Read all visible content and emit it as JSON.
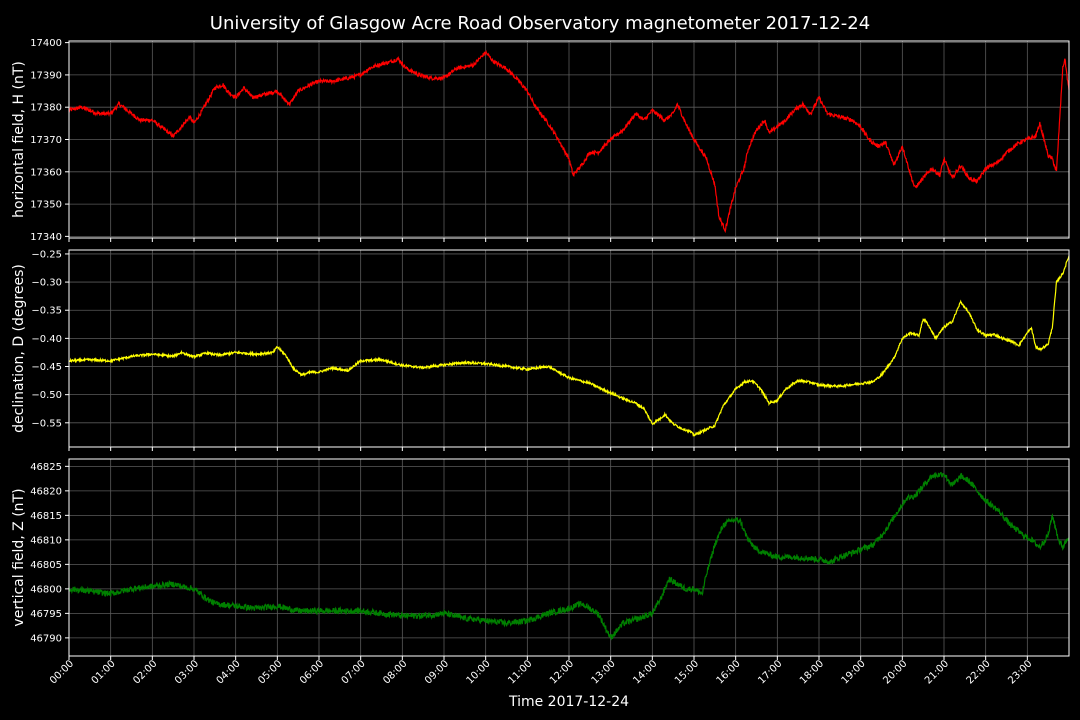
{
  "chart_data": {
    "type": "line",
    "title": "University of Glasgow Acre Road Observatory magnetometer 2017-12-24",
    "xlabel": "Time 2017-12-24",
    "x_ticks": [
      "00:00",
      "01:00",
      "02:00",
      "03:00",
      "04:00",
      "05:00",
      "06:00",
      "07:00",
      "08:00",
      "09:00",
      "10:00",
      "11:00",
      "12:00",
      "13:00",
      "14:00",
      "15:00",
      "16:00",
      "17:00",
      "18:00",
      "19:00",
      "20:00",
      "21:00",
      "22:00",
      "23:00"
    ],
    "xlim": [
      0,
      24
    ],
    "grid": true,
    "panels": [
      {
        "ylabel": "horizontal field, H (nT)",
        "ylim": [
          17339.5,
          17400.5
        ],
        "yticks": [
          17340,
          17350,
          17360,
          17370,
          17380,
          17390,
          17400
        ],
        "color": "#ff0000",
        "noise": 0.6,
        "points": [
          [
            0,
            17379
          ],
          [
            0.3,
            17380
          ],
          [
            0.7,
            17378
          ],
          [
            1.0,
            17378
          ],
          [
            1.2,
            17381
          ],
          [
            1.4,
            17379
          ],
          [
            1.7,
            17376
          ],
          [
            2.0,
            17376
          ],
          [
            2.3,
            17373
          ],
          [
            2.4,
            17372
          ],
          [
            2.5,
            17371
          ],
          [
            2.7,
            17374
          ],
          [
            2.9,
            17377
          ],
          [
            3.0,
            17375
          ],
          [
            3.2,
            17379
          ],
          [
            3.5,
            17386
          ],
          [
            3.7,
            17387
          ],
          [
            3.8,
            17385
          ],
          [
            4.0,
            17383
          ],
          [
            4.2,
            17386
          ],
          [
            4.4,
            17383
          ],
          [
            4.7,
            17384
          ],
          [
            5.0,
            17385
          ],
          [
            5.2,
            17382
          ],
          [
            5.3,
            17381
          ],
          [
            5.5,
            17385
          ],
          [
            5.8,
            17387
          ],
          [
            6.0,
            17388
          ],
          [
            6.3,
            17388
          ],
          [
            6.7,
            17389
          ],
          [
            7.0,
            17390
          ],
          [
            7.2,
            17392
          ],
          [
            7.4,
            17393
          ],
          [
            7.7,
            17394
          ],
          [
            7.9,
            17395
          ],
          [
            8.1,
            17392
          ],
          [
            8.4,
            17390
          ],
          [
            8.7,
            17389
          ],
          [
            9.0,
            17389
          ],
          [
            9.3,
            17392
          ],
          [
            9.7,
            17393
          ],
          [
            10.0,
            17397
          ],
          [
            10.2,
            17394
          ],
          [
            10.5,
            17392
          ],
          [
            10.8,
            17388
          ],
          [
            11.0,
            17385
          ],
          [
            11.2,
            17380
          ],
          [
            11.5,
            17375
          ],
          [
            11.7,
            17371
          ],
          [
            12.0,
            17364
          ],
          [
            12.1,
            17359
          ],
          [
            12.3,
            17362
          ],
          [
            12.5,
            17366
          ],
          [
            12.7,
            17366
          ],
          [
            13.0,
            17370
          ],
          [
            13.3,
            17373
          ],
          [
            13.6,
            17378
          ],
          [
            13.8,
            17376
          ],
          [
            14.0,
            17379
          ],
          [
            14.3,
            17376
          ],
          [
            14.5,
            17378
          ],
          [
            14.6,
            17381
          ],
          [
            14.8,
            17375
          ],
          [
            15.0,
            17370
          ],
          [
            15.3,
            17364
          ],
          [
            15.5,
            17356
          ],
          [
            15.6,
            17346
          ],
          [
            15.75,
            17342
          ],
          [
            15.9,
            17350
          ],
          [
            16.0,
            17355
          ],
          [
            16.2,
            17361
          ],
          [
            16.3,
            17367
          ],
          [
            16.5,
            17373
          ],
          [
            16.7,
            17376
          ],
          [
            16.8,
            17372
          ],
          [
            17.0,
            17374
          ],
          [
            17.2,
            17376
          ],
          [
            17.4,
            17379
          ],
          [
            17.6,
            17381
          ],
          [
            17.8,
            17378
          ],
          [
            18.0,
            17383
          ],
          [
            18.2,
            17378
          ],
          [
            18.5,
            17377
          ],
          [
            18.8,
            17376
          ],
          [
            19.0,
            17374
          ],
          [
            19.2,
            17370
          ],
          [
            19.4,
            17368
          ],
          [
            19.6,
            17369
          ],
          [
            19.8,
            17362
          ],
          [
            20.0,
            17368
          ],
          [
            20.2,
            17359
          ],
          [
            20.3,
            17355
          ],
          [
            20.5,
            17358
          ],
          [
            20.7,
            17361
          ],
          [
            20.9,
            17359
          ],
          [
            21.0,
            17364
          ],
          [
            21.2,
            17358
          ],
          [
            21.4,
            17362
          ],
          [
            21.6,
            17358
          ],
          [
            21.8,
            17357
          ],
          [
            22.0,
            17361
          ],
          [
            22.3,
            17363
          ],
          [
            22.5,
            17366
          ],
          [
            22.8,
            17369
          ],
          [
            23.0,
            17370
          ],
          [
            23.2,
            17371
          ],
          [
            23.3,
            17375
          ],
          [
            23.5,
            17365
          ],
          [
            23.6,
            17364
          ],
          [
            23.7,
            17360
          ],
          [
            23.85,
            17392
          ],
          [
            23.9,
            17395
          ],
          [
            24.0,
            17385
          ]
        ]
      },
      {
        "ylabel": "declination, D (degrees)",
        "ylim": [
          -0.593,
          -0.243
        ],
        "yticks": [
          -0.55,
          -0.5,
          -0.45,
          -0.4,
          -0.35,
          -0.3,
          -0.25
        ],
        "ytick_labels": [
          "−0.55",
          "−0.50",
          "−0.45",
          "−0.40",
          "−0.35",
          "−0.30",
          "−0.25"
        ],
        "color": "#ffff00",
        "noise": 0.002,
        "points": [
          [
            0,
            -0.44
          ],
          [
            0.5,
            -0.438
          ],
          [
            1.0,
            -0.44
          ],
          [
            1.5,
            -0.432
          ],
          [
            2.0,
            -0.428
          ],
          [
            2.5,
            -0.432
          ],
          [
            2.7,
            -0.425
          ],
          [
            3.0,
            -0.433
          ],
          [
            3.3,
            -0.426
          ],
          [
            3.6,
            -0.43
          ],
          [
            4.0,
            -0.425
          ],
          [
            4.5,
            -0.428
          ],
          [
            4.9,
            -0.425
          ],
          [
            5.0,
            -0.415
          ],
          [
            5.2,
            -0.43
          ],
          [
            5.4,
            -0.455
          ],
          [
            5.6,
            -0.465
          ],
          [
            5.8,
            -0.46
          ],
          [
            6.0,
            -0.46
          ],
          [
            6.3,
            -0.453
          ],
          [
            6.7,
            -0.457
          ],
          [
            7.0,
            -0.44
          ],
          [
            7.5,
            -0.438
          ],
          [
            8.0,
            -0.448
          ],
          [
            8.5,
            -0.452
          ],
          [
            9.0,
            -0.447
          ],
          [
            9.5,
            -0.443
          ],
          [
            10.0,
            -0.445
          ],
          [
            10.5,
            -0.45
          ],
          [
            11.0,
            -0.455
          ],
          [
            11.5,
            -0.45
          ],
          [
            12.0,
            -0.47
          ],
          [
            12.5,
            -0.48
          ],
          [
            13.0,
            -0.497
          ],
          [
            13.3,
            -0.507
          ],
          [
            13.6,
            -0.515
          ],
          [
            13.8,
            -0.525
          ],
          [
            14.0,
            -0.552
          ],
          [
            14.2,
            -0.542
          ],
          [
            14.3,
            -0.535
          ],
          [
            14.5,
            -0.552
          ],
          [
            14.7,
            -0.56
          ],
          [
            14.9,
            -0.565
          ],
          [
            15.0,
            -0.572
          ],
          [
            15.2,
            -0.565
          ],
          [
            15.5,
            -0.555
          ],
          [
            15.7,
            -0.52
          ],
          [
            16.0,
            -0.49
          ],
          [
            16.2,
            -0.478
          ],
          [
            16.4,
            -0.475
          ],
          [
            16.6,
            -0.49
          ],
          [
            16.8,
            -0.515
          ],
          [
            17.0,
            -0.51
          ],
          [
            17.2,
            -0.49
          ],
          [
            17.5,
            -0.475
          ],
          [
            17.8,
            -0.478
          ],
          [
            18.0,
            -0.483
          ],
          [
            18.5,
            -0.485
          ],
          [
            19.0,
            -0.48
          ],
          [
            19.3,
            -0.477
          ],
          [
            19.5,
            -0.465
          ],
          [
            19.8,
            -0.435
          ],
          [
            20.0,
            -0.4
          ],
          [
            20.2,
            -0.39
          ],
          [
            20.4,
            -0.395
          ],
          [
            20.5,
            -0.365
          ],
          [
            20.6,
            -0.373
          ],
          [
            20.8,
            -0.4
          ],
          [
            21.0,
            -0.38
          ],
          [
            21.2,
            -0.37
          ],
          [
            21.4,
            -0.335
          ],
          [
            21.6,
            -0.355
          ],
          [
            21.8,
            -0.385
          ],
          [
            22.0,
            -0.395
          ],
          [
            22.2,
            -0.393
          ],
          [
            22.4,
            -0.4
          ],
          [
            22.6,
            -0.405
          ],
          [
            22.8,
            -0.412
          ],
          [
            23.0,
            -0.39
          ],
          [
            23.1,
            -0.382
          ],
          [
            23.2,
            -0.415
          ],
          [
            23.3,
            -0.42
          ],
          [
            23.5,
            -0.41
          ],
          [
            23.6,
            -0.38
          ],
          [
            23.7,
            -0.3
          ],
          [
            23.85,
            -0.285
          ],
          [
            24.0,
            -0.253
          ]
        ]
      },
      {
        "ylabel": "vertical field, Z (nT)",
        "ylim": [
          46786.3,
          46826.5
        ],
        "yticks": [
          46790,
          46795,
          46800,
          46805,
          46810,
          46815,
          46820,
          46825
        ],
        "color": "#008000",
        "noise": 0.6,
        "points": [
          [
            0,
            46800
          ],
          [
            0.5,
            46799.5
          ],
          [
            1.0,
            46799
          ],
          [
            1.5,
            46800
          ],
          [
            2.0,
            46800.5
          ],
          [
            2.5,
            46801
          ],
          [
            2.7,
            46800.5
          ],
          [
            3.0,
            46800
          ],
          [
            3.3,
            46798
          ],
          [
            3.5,
            46797
          ],
          [
            4.0,
            46796.5
          ],
          [
            4.5,
            46796
          ],
          [
            5.0,
            46796.5
          ],
          [
            5.5,
            46795.5
          ],
          [
            6.0,
            46795.5
          ],
          [
            6.5,
            46795.5
          ],
          [
            7.0,
            46795.5
          ],
          [
            7.5,
            46795
          ],
          [
            8.0,
            46794.5
          ],
          [
            8.5,
            46794.5
          ],
          [
            9.0,
            46795
          ],
          [
            9.5,
            46794
          ],
          [
            10.0,
            46793.5
          ],
          [
            10.5,
            46793
          ],
          [
            11.0,
            46793.5
          ],
          [
            11.5,
            46795
          ],
          [
            12.0,
            46796
          ],
          [
            12.3,
            46797
          ],
          [
            12.7,
            46795
          ],
          [
            13.0,
            46790
          ],
          [
            13.3,
            46793
          ],
          [
            13.7,
            46794
          ],
          [
            14.0,
            46795
          ],
          [
            14.2,
            46798
          ],
          [
            14.4,
            46802
          ],
          [
            14.6,
            46801
          ],
          [
            14.8,
            46800
          ],
          [
            15.0,
            46800
          ],
          [
            15.2,
            46799
          ],
          [
            15.3,
            46803
          ],
          [
            15.5,
            46809
          ],
          [
            15.7,
            46813
          ],
          [
            15.9,
            46814
          ],
          [
            16.1,
            46814
          ],
          [
            16.3,
            46810
          ],
          [
            16.5,
            46808
          ],
          [
            16.8,
            46807
          ],
          [
            17.0,
            46806.5
          ],
          [
            17.5,
            46806.5
          ],
          [
            18.0,
            46806
          ],
          [
            18.3,
            46805.5
          ],
          [
            18.5,
            46806.5
          ],
          [
            19.0,
            46808
          ],
          [
            19.3,
            46809
          ],
          [
            19.6,
            46812
          ],
          [
            19.9,
            46816
          ],
          [
            20.1,
            46818.5
          ],
          [
            20.3,
            46819
          ],
          [
            20.5,
            46821
          ],
          [
            20.7,
            46823
          ],
          [
            21.0,
            46823.5
          ],
          [
            21.2,
            46821
          ],
          [
            21.4,
            46823
          ],
          [
            21.6,
            46822
          ],
          [
            21.8,
            46820
          ],
          [
            22.0,
            46818
          ],
          [
            22.3,
            46816
          ],
          [
            22.6,
            46813
          ],
          [
            22.9,
            46811
          ],
          [
            23.1,
            46810
          ],
          [
            23.3,
            46808.5
          ],
          [
            23.5,
            46811
          ],
          [
            23.6,
            46815
          ],
          [
            23.75,
            46810
          ],
          [
            23.85,
            46808.5
          ],
          [
            24.0,
            46811
          ]
        ]
      }
    ]
  }
}
